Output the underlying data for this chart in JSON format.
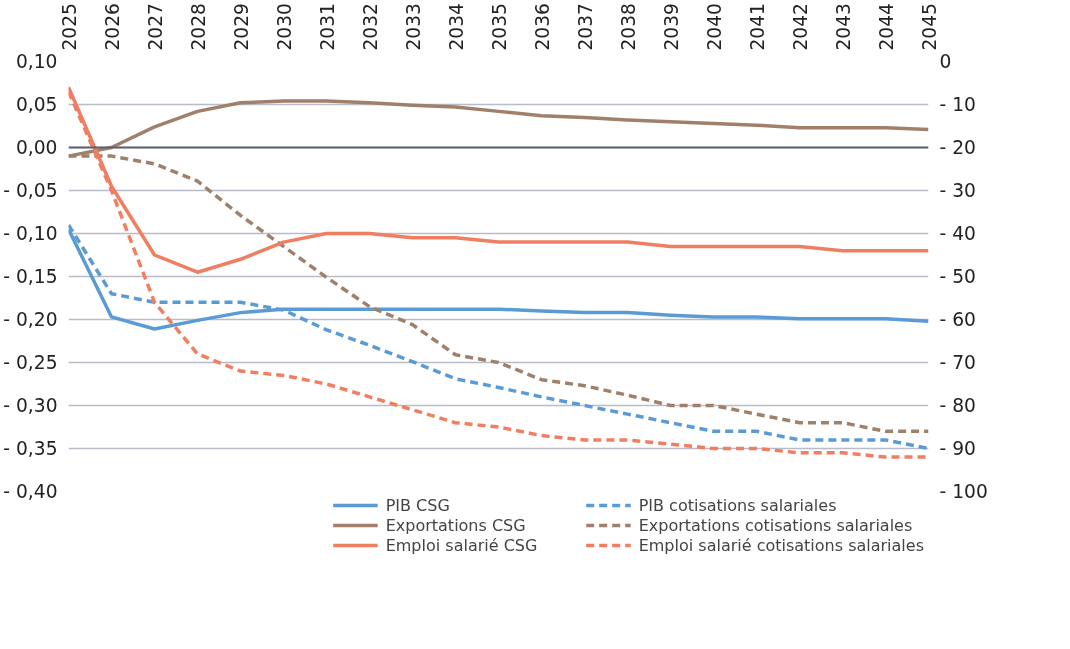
{
  "chart_data": {
    "type": "line",
    "x": [
      2025,
      2026,
      2027,
      2028,
      2029,
      2030,
      2031,
      2032,
      2033,
      2034,
      2035,
      2036,
      2037,
      2038,
      2039,
      2040,
      2041,
      2042,
      2043,
      2044,
      2045
    ],
    "xlim": [
      2025,
      2045
    ],
    "xticks": [
      2025,
      2026,
      2027,
      2028,
      2029,
      2030,
      2031,
      2032,
      2033,
      2034,
      2035,
      2036,
      2037,
      2038,
      2039,
      2040,
      2041,
      2042,
      2043,
      2044,
      2045
    ],
    "ylim": [
      -0.4,
      0.1
    ],
    "yticks": [
      {
        "value": 0.1,
        "label": "0,10"
      },
      {
        "value": 0.05,
        "label": "0,05"
      },
      {
        "value": 0,
        "label": "0,00"
      },
      {
        "value": -0.05,
        "label": "- 0,05"
      },
      {
        "value": -0.1,
        "label": "- 0,10"
      },
      {
        "value": -0.15,
        "label": "- 0,15"
      },
      {
        "value": -0.2,
        "label": "- 0,20"
      },
      {
        "value": -0.25,
        "label": "- 0,25"
      },
      {
        "value": -0.3,
        "label": "- 0,30"
      },
      {
        "value": -0.35,
        "label": "- 0,35"
      },
      {
        "value": -0.4,
        "label": "- 0,40"
      }
    ],
    "y2lim": [
      -100,
      0
    ],
    "y2ticks": [
      0,
      {
        "value": -10,
        "label": "- 10"
      },
      {
        "value": -20,
        "label": "- 20"
      },
      {
        "value": -30,
        "label": "- 30"
      },
      {
        "value": -40,
        "label": "- 40"
      },
      {
        "value": -50,
        "label": "- 50"
      },
      {
        "value": -60,
        "label": "- 60"
      },
      {
        "value": -70,
        "label": "- 70"
      },
      {
        "value": -80,
        "label": "- 80"
      },
      {
        "value": -90,
        "label": "- 90"
      },
      {
        "value": -100,
        "label": "- 100"
      }
    ],
    "grid": "y",
    "legend": "bottom",
    "marker": "none",
    "ref_lines": [
      {
        "axis": "y",
        "value": 0,
        "color": "#5a6270"
      }
    ],
    "series": [
      {
        "name": "PIB CSG",
        "color": "#5b9bd5",
        "line_style": "solid",
        "values": [
          -0.095,
          -0.197,
          -0.211,
          -0.201,
          -0.192,
          -0.188,
          -0.188,
          -0.188,
          -0.188,
          -0.188,
          -0.188,
          -0.19,
          -0.192,
          -0.192,
          -0.195,
          -0.197,
          -0.197,
          -0.199,
          -0.199,
          -0.199,
          -0.202
        ]
      },
      {
        "name": "PIB cotisations salariales",
        "color": "#5b9bd5",
        "line_style": "dashed",
        "values": [
          -0.09,
          -0.17,
          -0.18,
          -0.18,
          -0.18,
          -0.189,
          -0.212,
          -0.23,
          -0.249,
          -0.269,
          -0.279,
          -0.29,
          -0.3,
          -0.31,
          -0.32,
          -0.33,
          -0.33,
          -0.34,
          -0.34,
          -0.34,
          -0.35
        ]
      },
      {
        "name": "Exportations CSG",
        "color": "#a0806a",
        "line_style": "solid",
        "values": [
          -0.01,
          0.0,
          0.024,
          0.042,
          0.052,
          0.054,
          0.054,
          0.052,
          0.049,
          0.047,
          0.042,
          0.037,
          0.035,
          0.032,
          0.03,
          0.028,
          0.026,
          0.023,
          0.023,
          0.023,
          0.021
        ]
      },
      {
        "name": "Exportations cotisations salariales",
        "color": "#a0806a",
        "line_style": "dashed",
        "values": [
          -0.01,
          -0.01,
          -0.019,
          -0.039,
          -0.079,
          -0.115,
          -0.151,
          -0.185,
          -0.206,
          -0.241,
          -0.25,
          -0.27,
          -0.277,
          -0.288,
          -0.3,
          -0.3,
          -0.31,
          -0.32,
          -0.32,
          -0.33,
          -0.33
        ]
      },
      {
        "name": "Emploi salarié CSG",
        "color": "#f07f62",
        "line_style": "solid",
        "axis": "y2",
        "values": [
          -6,
          -29,
          -45,
          -49,
          -46,
          -42,
          -40,
          -40,
          -41,
          -41,
          -42,
          -42,
          -42,
          -42,
          -43,
          -43,
          -43,
          -43,
          -44,
          -44,
          -44
        ]
      },
      {
        "name": "Emploi salarié cotisations salariales",
        "color": "#f07f62",
        "line_style": "dashed",
        "axis": "y2",
        "values": [
          -7,
          -30,
          -56,
          -68,
          -72,
          -73,
          -75,
          -78,
          -81,
          -84,
          -85,
          -87,
          -88,
          -88,
          -89,
          -90,
          -90,
          -91,
          -91,
          -92,
          -92
        ]
      }
    ]
  }
}
